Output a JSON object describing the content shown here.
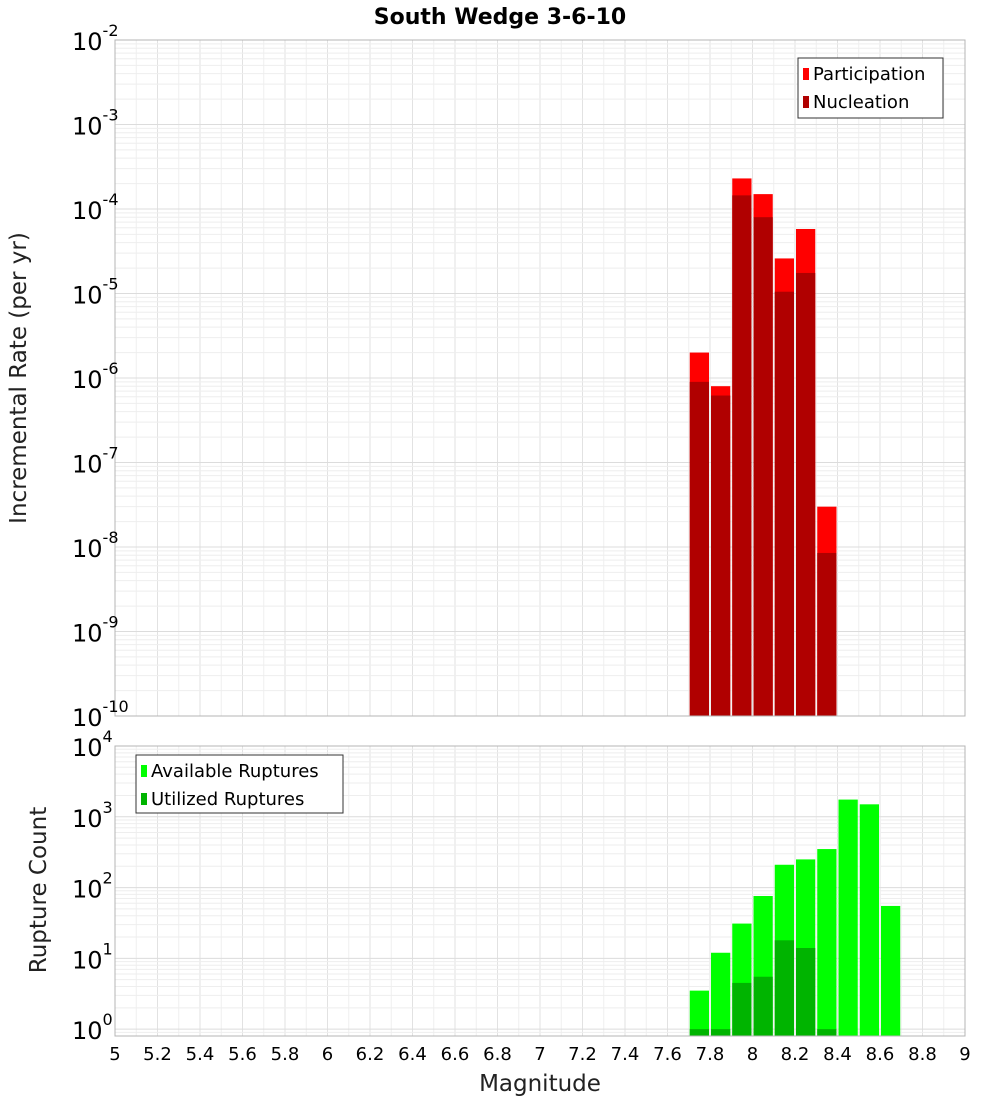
{
  "chart_data": [
    {
      "type": "bar",
      "title": "South Wedge 3-6-10",
      "ylabel": "Incremental Rate (per yr)",
      "yscale": "log",
      "ylim": [
        1e-10,
        0.01
      ],
      "xlim": [
        5,
        9
      ],
      "grid": true,
      "legend_position": "top-right",
      "bin_width": 0.1,
      "x": [
        7.75,
        7.85,
        7.95,
        8.05,
        8.15,
        8.25,
        8.35
      ],
      "series": [
        {
          "name": "Participation",
          "color": "#ff0000",
          "values": [
            2e-06,
            8e-07,
            0.00023,
            0.00015,
            2.6e-05,
            5.8e-05,
            3e-08
          ]
        },
        {
          "name": "Nucleation",
          "color": "#b00000",
          "values": [
            9e-07,
            6.2e-07,
            0.000145,
            8e-05,
            1.05e-05,
            1.75e-05,
            8.5e-09
          ]
        }
      ],
      "y_ticks": [
        {
          "base": "10",
          "exp": "-2",
          "value": 0.01
        },
        {
          "base": "10",
          "exp": "-3",
          "value": 0.001
        },
        {
          "base": "10",
          "exp": "-4",
          "value": 0.0001
        },
        {
          "base": "10",
          "exp": "-5",
          "value": 1e-05
        },
        {
          "base": "10",
          "exp": "-6",
          "value": 1e-06
        },
        {
          "base": "10",
          "exp": "-7",
          "value": 1e-07
        },
        {
          "base": "10",
          "exp": "-8",
          "value": 1e-08
        },
        {
          "base": "10",
          "exp": "-9",
          "value": 1e-09
        },
        {
          "base": "10",
          "exp": "-10",
          "value": 1e-10
        }
      ]
    },
    {
      "type": "bar",
      "ylabel": "Rupture Count",
      "xlabel": "Magnitude",
      "yscale": "log",
      "ylim": [
        0.8,
        10000.0
      ],
      "xlim": [
        5,
        9
      ],
      "grid": true,
      "legend_position": "top-left",
      "bin_width": 0.1,
      "x": [
        7.75,
        7.85,
        7.95,
        8.05,
        8.15,
        8.25,
        8.35,
        8.45,
        8.55,
        8.65
      ],
      "series": [
        {
          "name": "Available Ruptures",
          "color": "#00ff00",
          "values": [
            3.5,
            12,
            31,
            76,
            210,
            250,
            350,
            1750,
            1500,
            55
          ]
        },
        {
          "name": "Utilized Ruptures",
          "color": "#00b400",
          "values": [
            1,
            1,
            4.5,
            5.5,
            18,
            14,
            1,
            null,
            null,
            null
          ]
        }
      ],
      "y_ticks": [
        {
          "base": "10",
          "exp": "4",
          "value": 10000.0
        },
        {
          "base": "10",
          "exp": "3",
          "value": 1000.0
        },
        {
          "base": "10",
          "exp": "2",
          "value": 100.0
        },
        {
          "base": "10",
          "exp": "1",
          "value": 10.0
        },
        {
          "base": "10",
          "exp": "0",
          "value": 1
        }
      ],
      "x_ticks": [
        "5",
        "5.2",
        "5.4",
        "5.6",
        "5.8",
        "6",
        "6.2",
        "6.4",
        "6.6",
        "6.8",
        "7",
        "7.2",
        "7.4",
        "7.6",
        "7.8",
        "8",
        "8.2",
        "8.4",
        "8.6",
        "8.8",
        "9"
      ]
    }
  ]
}
